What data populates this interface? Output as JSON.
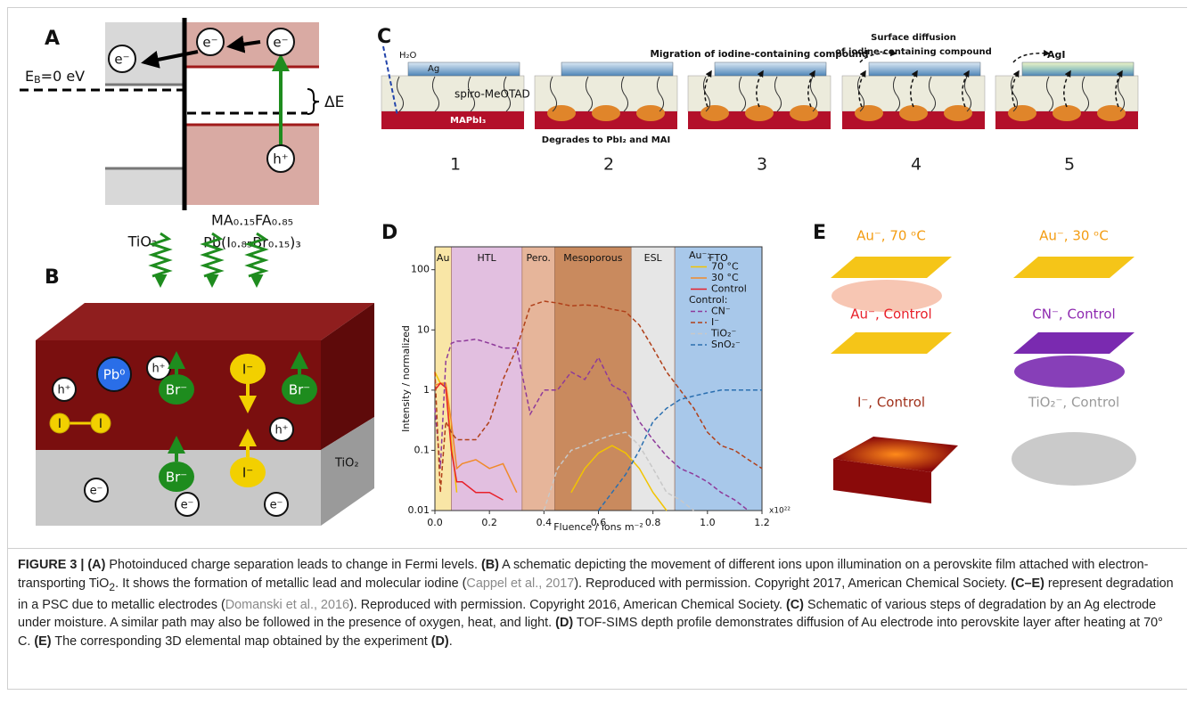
{
  "panel_a": {
    "label": "A",
    "circles": [
      "e⁻",
      "e⁻",
      "e⁻",
      "h⁺"
    ],
    "eb": [
      "E",
      "B",
      "=0 eV"
    ],
    "delta_e": "ΔE",
    "tio2": "TiO₂",
    "perovskite": [
      "MA₀.₁₅FA₀.₈₅",
      "Pb(I₀.₈₅Br₀.₁₅)₃"
    ]
  },
  "panel_b": {
    "label": "B",
    "holes": [
      "h⁺",
      "h⁺",
      "h⁺"
    ],
    "lead": "Pb⁰",
    "iodine": [
      "I",
      "I"
    ],
    "bromide": [
      "Br⁻",
      "Br⁻",
      "Br⁻"
    ],
    "iodide": [
      "I⁻",
      "I⁻"
    ],
    "electrons": [
      "e⁻",
      "e⁻",
      "e⁻"
    ],
    "tio2": "TiO₂"
  },
  "panel_c": {
    "label": "C",
    "water": "H₂O",
    "silver": "Ag",
    "htl": "spiro-MeOTAD",
    "perovskite": "MAPbI₃",
    "step2": "Degrades to PbI₂ and MAI",
    "step3": "Migration of iodine-containing compound",
    "step4": [
      "Surface diffusion",
      "of iodine-containing compound"
    ],
    "step5": "AgI",
    "steps": [
      "1",
      "2",
      "3",
      "4",
      "5"
    ]
  },
  "chart_data": {
    "type": "line",
    "panel_label": "D",
    "xlabel": "Fluence / ions m⁻²",
    "ylabel": "Intensity / normalized",
    "x_multiplier": "x10²²",
    "log_y": true,
    "legend": "upper right",
    "xlim": [
      0,
      1.2
    ],
    "xticks": [
      {
        "value": 0,
        "label": "0.0"
      },
      {
        "value": 0.2,
        "label": "0.2"
      },
      {
        "value": 0.4,
        "label": "0.4"
      },
      {
        "value": 0.6,
        "label": "0.6"
      },
      {
        "value": 0.8,
        "label": "0.8"
      },
      {
        "value": 1,
        "label": "1.0"
      },
      {
        "value": 1.2,
        "label": "1.2"
      }
    ],
    "ylim": [
      0.01,
      240
    ],
    "yticks": [
      0.01,
      0.1,
      1,
      10,
      100
    ],
    "regions": [
      {
        "name": "Au",
        "x0": 0,
        "x1": 0.06,
        "color": "#f9e6a6"
      },
      {
        "name": "HTL",
        "x0": 0.06,
        "x1": 0.32,
        "color": "#e2bfe0"
      },
      {
        "name": "Pero.",
        "x0": 0.32,
        "x1": 0.44,
        "color": "#e6b59a"
      },
      {
        "name": "Mesoporous",
        "x0": 0.44,
        "x1": 0.72,
        "color": "#c98a5e"
      },
      {
        "name": "ESL",
        "x0": 0.72,
        "x1": 0.88,
        "color": "#e6e6e6"
      },
      {
        "name": "FTO",
        "x0": 0.88,
        "x1": 1.2,
        "color": "#a8c8ea"
      }
    ],
    "legend_headers": [
      "Au⁻:",
      "Control:"
    ],
    "x": [
      0,
      0.02,
      0.04,
      0.06,
      0.08,
      0.1,
      0.15,
      0.2,
      0.25,
      0.3,
      0.35,
      0.4,
      0.45,
      0.5,
      0.55,
      0.6,
      0.65,
      0.7,
      0.75,
      0.8,
      0.85,
      0.9,
      0.95,
      1,
      1.05,
      1.1,
      1.15,
      1.2
    ],
    "series": [
      {
        "name": "70 °C",
        "color": "#f2c400",
        "dashed": false,
        "values": [
          2,
          1.3,
          1.2,
          0.15,
          0.02,
          null,
          null,
          null,
          null,
          null,
          null,
          null,
          null,
          0.02,
          0.05,
          0.09,
          0.12,
          0.09,
          0.05,
          0.02,
          0.01,
          null,
          null,
          null,
          null,
          null,
          null,
          null
        ]
      },
      {
        "name": "30 °C",
        "color": "#f08a2a",
        "dashed": false,
        "values": [
          1.2,
          1.3,
          1.3,
          0.3,
          0.05,
          0.06,
          0.07,
          0.05,
          0.06,
          0.02,
          null,
          null,
          null,
          null,
          null,
          null,
          null,
          null,
          null,
          null,
          null,
          null,
          null,
          null,
          null,
          null,
          null,
          null
        ]
      },
      {
        "name": "Control",
        "color": "#e8202a",
        "dashed": false,
        "values": [
          1,
          1.3,
          1.1,
          0.1,
          0.03,
          0.03,
          0.02,
          0.02,
          0.015,
          null,
          null,
          null,
          null,
          null,
          null,
          null,
          null,
          null,
          null,
          null,
          null,
          null,
          null,
          null,
          null,
          null,
          null,
          null
        ]
      },
      {
        "name": "CN⁻",
        "color": "#8e3a9a",
        "dashed": true,
        "values": [
          0.5,
          0.05,
          3,
          6,
          6.5,
          6.5,
          7,
          6,
          5,
          5,
          0.4,
          1,
          1,
          2,
          1.5,
          3.5,
          1.2,
          0.9,
          0.3,
          0.15,
          0.08,
          0.05,
          0.04,
          0.03,
          0.02,
          0.015,
          0.01,
          null
        ]
      },
      {
        "name": "I⁻",
        "color": "#b0401a",
        "dashed": true,
        "values": [
          2,
          0.02,
          0.3,
          0.2,
          0.15,
          0.15,
          0.15,
          0.3,
          1.5,
          5,
          25,
          30,
          28,
          25,
          26,
          25,
          22,
          20,
          12,
          5,
          2,
          1,
          0.5,
          0.2,
          0.12,
          0.1,
          0.07,
          0.05
        ]
      },
      {
        "name": "TiO₂⁻",
        "color": "#c8c8c8",
        "dashed": true,
        "values": [
          null,
          null,
          null,
          null,
          null,
          null,
          null,
          null,
          null,
          null,
          null,
          0.01,
          0.05,
          0.1,
          0.12,
          0.15,
          0.18,
          0.2,
          0.12,
          0.05,
          0.02,
          0.015,
          0.01,
          null,
          null,
          null,
          null,
          null
        ]
      },
      {
        "name": "SnO₂⁻",
        "color": "#2a6fb0",
        "dashed": true,
        "values": [
          null,
          null,
          null,
          null,
          null,
          null,
          null,
          null,
          null,
          null,
          null,
          null,
          null,
          null,
          null,
          0.01,
          0.02,
          0.04,
          0.1,
          0.3,
          0.5,
          0.7,
          0.8,
          0.9,
          1,
          1,
          1,
          1
        ]
      }
    ]
  },
  "panel_e": {
    "label": "E",
    "maps": [
      {
        "name": "Au⁻, 70 ᵒC",
        "color": "#f39c12"
      },
      {
        "name": "Au⁻, 30 ᵒC",
        "color": "#f39c12"
      },
      {
        "name": "Au⁻, Control",
        "color": "#e8202a"
      },
      {
        "name": "CN⁻, Control",
        "color": "#8e2ab0"
      },
      {
        "name": "I⁻, Control",
        "color": "#a0301a"
      },
      {
        "name": "TiO₂⁻, Control",
        "color": "#9a9a9a"
      }
    ]
  },
  "caption": [
    "FIGURE 3 | (A)",
    " Photoinduced charge separation leads to change in Fermi levels. ",
    "(B)",
    " A schematic depicting the movement of different ions upon illumination on a perovskite film attached with electron-transporting TiO",
    "2",
    ". It shows the formation of metallic lead and molecular iodine (",
    "Cappel et al., 2017",
    "). Reproduced with permission. Copyright 2017, American Chemical Society. ",
    "(C–E)",
    " represent degradation in a PSC due to metallic electrodes (",
    "Domanski et al., 2016",
    "). Reproduced with permission. Copyright 2016, American Chemical Society. ",
    "(C)",
    " Schematic of various steps of degradation by an Ag electrode under moisture. A similar path may also be followed in the presence of oxygen, heat, and light. ",
    "(D)",
    " TOF-SIMS depth profile demonstrates diffusion of Au electrode into perovskite layer after heating at 70° C. ",
    "(E)",
    " The corresponding 3D elemental map obtained by the experiment ",
    "(D)",
    "."
  ]
}
